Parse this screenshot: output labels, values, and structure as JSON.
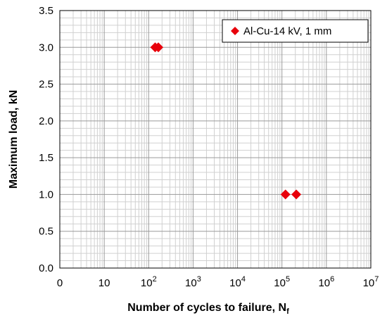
{
  "chart_data": {
    "type": "scatter",
    "xscale": "log",
    "xlabel": "Number of cycles to failure, N",
    "xlabel_subscript": "f",
    "ylabel": "Maximum load, kN",
    "xlim": [
      1,
      10000000
    ],
    "ylim": [
      0,
      3.5
    ],
    "y_ticks": [
      "0.0",
      "0.5",
      "1.0",
      "1.5",
      "2.0",
      "2.5",
      "3.0",
      "3.5"
    ],
    "x_ticks": [
      {
        "base": "0",
        "exp": ""
      },
      {
        "base": "10",
        "exp": ""
      },
      {
        "base": "10",
        "exp": "2"
      },
      {
        "base": "10",
        "exp": "3"
      },
      {
        "base": "10",
        "exp": "4"
      },
      {
        "base": "10",
        "exp": "5"
      },
      {
        "base": "10",
        "exp": "6"
      },
      {
        "base": "10",
        "exp": "7"
      }
    ],
    "grid": true,
    "legend_position": "top-right",
    "series": [
      {
        "name": "Al-Cu-14 kV, 1 mm",
        "color": "#e8000b",
        "marker": "diamond",
        "points": [
          {
            "x": 140,
            "y": 3.0
          },
          {
            "x": 165,
            "y": 3.0
          },
          {
            "x": 120000,
            "y": 1.0
          },
          {
            "x": 210000,
            "y": 1.0
          }
        ]
      }
    ]
  }
}
